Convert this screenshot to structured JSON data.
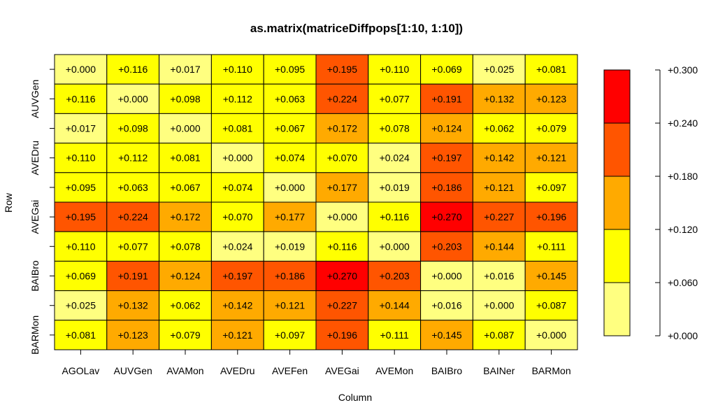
{
  "chart_data": {
    "type": "heatmap",
    "title": "as.matrix(matriceDiffpops[1:10, 1:10])",
    "xlabel": "Column",
    "ylabel": "Row",
    "columns": [
      "AGOLav",
      "AUVGen",
      "AVAMon",
      "AVEDru",
      "AVEFen",
      "AVEGai",
      "AVEMon",
      "BAIBro",
      "BAINer",
      "BARMon"
    ],
    "row_tick_labels": [
      "",
      "AUVGen",
      "",
      "AVEDru",
      "",
      "AVEGai",
      "",
      "BAIBro",
      "",
      "BARMon"
    ],
    "values": [
      [
        0.0,
        0.116,
        0.017,
        0.11,
        0.095,
        0.195,
        0.11,
        0.069,
        0.025,
        0.081
      ],
      [
        0.116,
        0.0,
        0.098,
        0.112,
        0.063,
        0.224,
        0.077,
        0.191,
        0.132,
        0.123
      ],
      [
        0.017,
        0.098,
        0.0,
        0.081,
        0.067,
        0.172,
        0.078,
        0.124,
        0.062,
        0.079
      ],
      [
        0.11,
        0.112,
        0.081,
        0.0,
        0.074,
        0.07,
        0.024,
        0.197,
        0.142,
        0.121
      ],
      [
        0.095,
        0.063,
        0.067,
        0.074,
        0.0,
        0.177,
        0.019,
        0.186,
        0.121,
        0.097
      ],
      [
        0.195,
        0.224,
        0.172,
        0.07,
        0.177,
        0.0,
        0.116,
        0.27,
        0.227,
        0.196
      ],
      [
        0.11,
        0.077,
        0.078,
        0.024,
        0.019,
        0.116,
        0.0,
        0.203,
        0.144,
        0.111
      ],
      [
        0.069,
        0.191,
        0.124,
        0.197,
        0.186,
        0.27,
        0.203,
        0.0,
        0.016,
        0.145
      ],
      [
        0.025,
        0.132,
        0.062,
        0.142,
        0.121,
        0.227,
        0.144,
        0.016,
        0.0,
        0.087
      ],
      [
        0.081,
        0.123,
        0.079,
        0.121,
        0.097,
        0.196,
        0.111,
        0.145,
        0.087,
        0.0
      ]
    ],
    "cell_labels": [
      [
        "+0.000",
        "+0.116",
        "+0.017",
        "+0.110",
        "+0.095",
        "+0.195",
        "+0.110",
        "+0.069",
        "+0.025",
        "+0.081"
      ],
      [
        "+0.116",
        "+0.000",
        "+0.098",
        "+0.112",
        "+0.063",
        "+0.224",
        "+0.077",
        "+0.191",
        "+0.132",
        "+0.123"
      ],
      [
        "+0.017",
        "+0.098",
        "+0.000",
        "+0.081",
        "+0.067",
        "+0.172",
        "+0.078",
        "+0.124",
        "+0.062",
        "+0.079"
      ],
      [
        "+0.110",
        "+0.112",
        "+0.081",
        "+0.000",
        "+0.074",
        "+0.070",
        "+0.024",
        "+0.197",
        "+0.142",
        "+0.121"
      ],
      [
        "+0.095",
        "+0.063",
        "+0.067",
        "+0.074",
        "+0.000",
        "+0.177",
        "+0.019",
        "+0.186",
        "+0.121",
        "+0.097"
      ],
      [
        "+0.195",
        "+0.224",
        "+0.172",
        "+0.070",
        "+0.177",
        "+0.000",
        "+0.116",
        "+0.270",
        "+0.227",
        "+0.196"
      ],
      [
        "+0.110",
        "+0.077",
        "+0.078",
        "+0.024",
        "+0.019",
        "+0.116",
        "+0.000",
        "+0.203",
        "+0.144",
        "+0.111"
      ],
      [
        "+0.069",
        "+0.191",
        "+0.124",
        "+0.197",
        "+0.186",
        "+0.270",
        "+0.203",
        "+0.000",
        "+0.016",
        "+0.145"
      ],
      [
        "+0.025",
        "+0.132",
        "+0.062",
        "+0.142",
        "+0.121",
        "+0.227",
        "+0.144",
        "+0.016",
        "+0.000",
        "+0.087"
      ],
      [
        "+0.081",
        "+0.123",
        "+0.079",
        "+0.121",
        "+0.097",
        "+0.196",
        "+0.111",
        "+0.145",
        "+0.087",
        "+0.000"
      ]
    ],
    "legend": {
      "placement": "right",
      "breaks": [
        0.0,
        0.06,
        0.12,
        0.18,
        0.24,
        0.3
      ],
      "tick_labels": [
        "+0.000",
        "+0.060",
        "+0.120",
        "+0.180",
        "+0.240",
        "+0.300"
      ],
      "colors": [
        "#FFFF80",
        "#FFFF00",
        "#FFAA00",
        "#FF5500",
        "#FF0000"
      ]
    },
    "grid": false
  }
}
